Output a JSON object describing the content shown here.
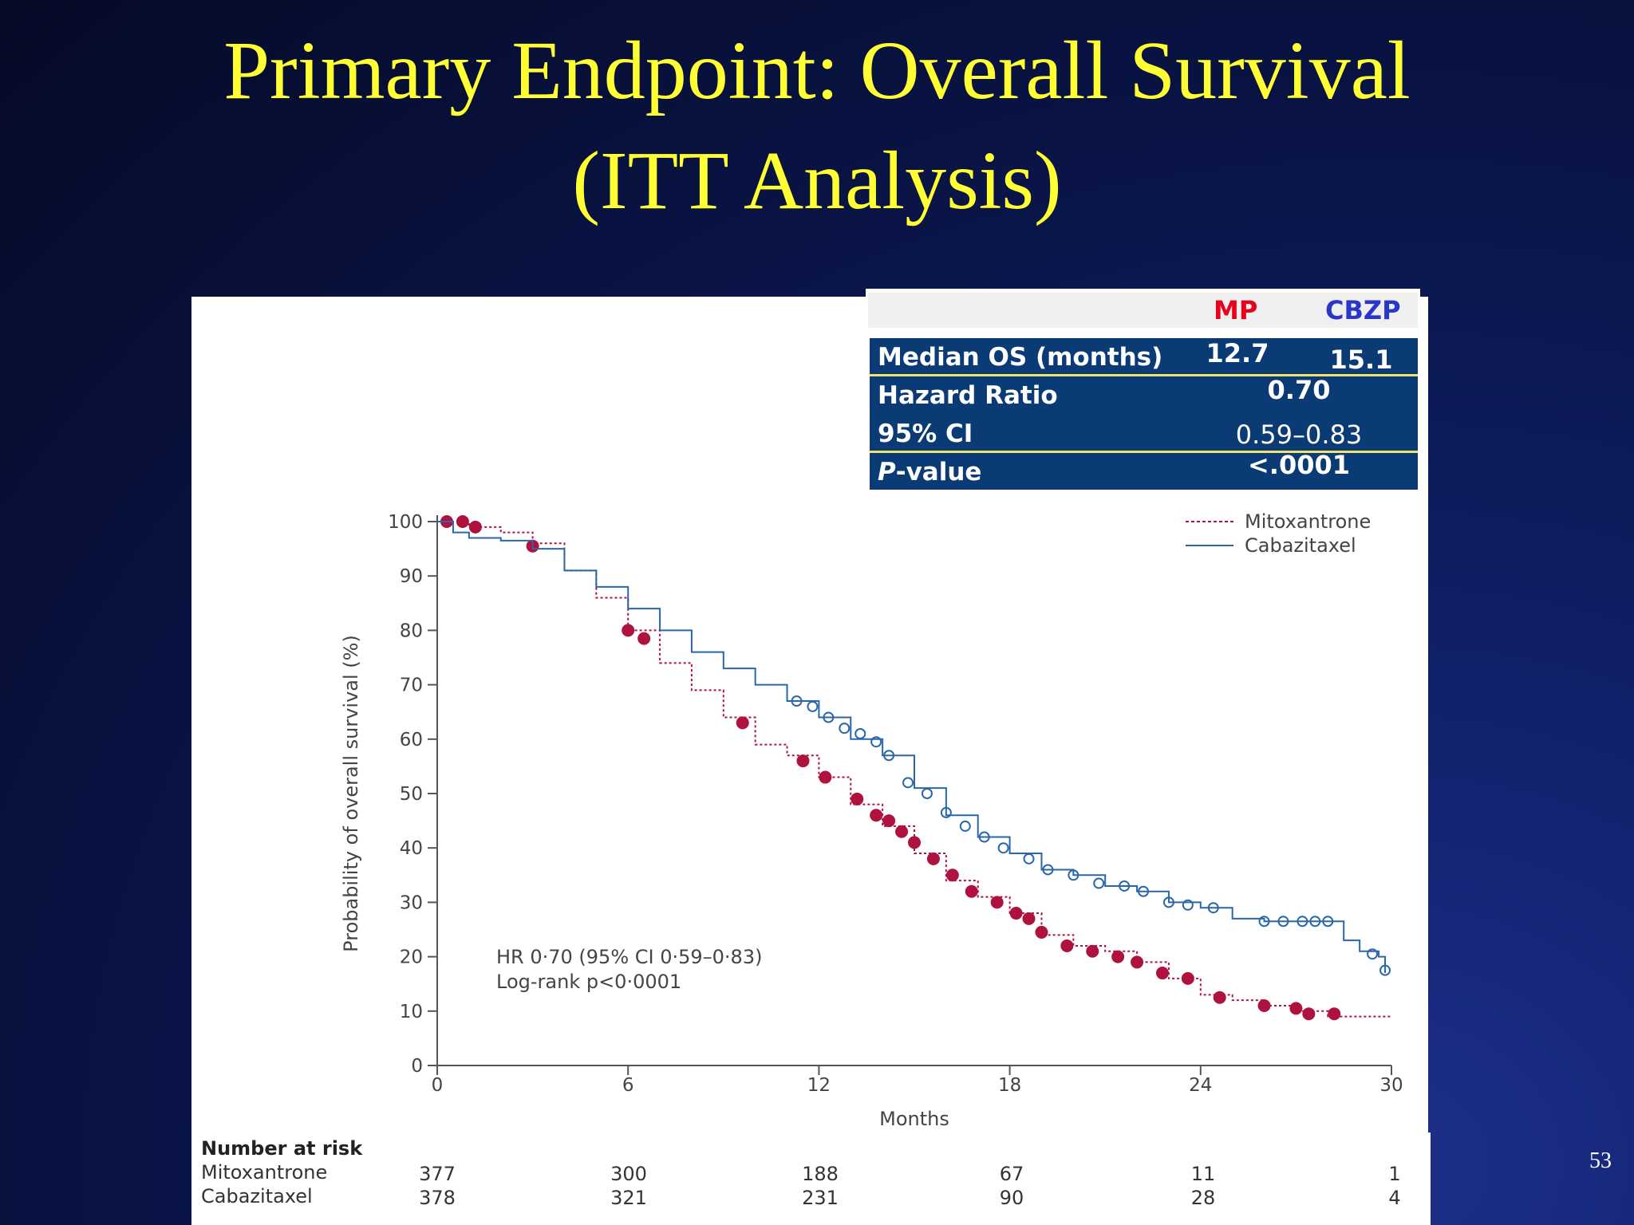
{
  "slide": {
    "title_line1": "Primary Endpoint: Overall Survival",
    "title_line2": "(ITT Analysis)",
    "page_number": "53"
  },
  "summary_table": {
    "columns": [
      "MP",
      "CBZP"
    ],
    "column_colors": [
      "#e8001c",
      "#2a36c8"
    ],
    "rows": [
      {
        "label": "Median OS (months)",
        "mp": "12.7",
        "cbzp": "15.1"
      },
      {
        "label": "Hazard Ratio",
        "value": "0.70"
      },
      {
        "label": "95% CI",
        "value": "0.59–0.83"
      },
      {
        "label_prefix": "P",
        "label_suffix": "-value",
        "value": "<.0001"
      }
    ]
  },
  "risk_table": {
    "heading": "Number at risk",
    "rows": [
      {
        "label": "Mitoxantrone",
        "values": [
          "377",
          "300",
          "188",
          "67",
          "11",
          "1"
        ]
      },
      {
        "label": "Cabazitaxel",
        "values": [
          "378",
          "321",
          "231",
          "90",
          "28",
          "4"
        ]
      }
    ]
  },
  "chart_data": {
    "type": "line",
    "subtype": "kaplan-meier step curve with censor marks",
    "xlabel": "Months",
    "ylabel": "Probability of overall survival (%)",
    "xlim": [
      0,
      30
    ],
    "ylim": [
      0,
      100
    ],
    "x_ticks": [
      0,
      6,
      12,
      18,
      24,
      30
    ],
    "y_ticks": [
      0,
      10,
      20,
      30,
      40,
      50,
      60,
      70,
      80,
      90,
      100
    ],
    "grid": false,
    "legend_position": "top-right",
    "annotation": [
      "HR 0·70 (95% CI 0·59–0·83)",
      "Log-rank p<0·0001"
    ],
    "series": [
      {
        "name": "Mitoxantrone",
        "color": "#b0123f",
        "style": "dotted",
        "points": [
          [
            0,
            100
          ],
          [
            1,
            99
          ],
          [
            2,
            98
          ],
          [
            3,
            96
          ],
          [
            4,
            91
          ],
          [
            5,
            86
          ],
          [
            6,
            80
          ],
          [
            7,
            74
          ],
          [
            8,
            69
          ],
          [
            9,
            64
          ],
          [
            10,
            59
          ],
          [
            11,
            57
          ],
          [
            12,
            53
          ],
          [
            13,
            48
          ],
          [
            14,
            44
          ],
          [
            15,
            39
          ],
          [
            16,
            34
          ],
          [
            17,
            31
          ],
          [
            18,
            28
          ],
          [
            19,
            24
          ],
          [
            20,
            22
          ],
          [
            21,
            21
          ],
          [
            22,
            19
          ],
          [
            23,
            16
          ],
          [
            24,
            13
          ],
          [
            25,
            12
          ],
          [
            26,
            11
          ],
          [
            27,
            10
          ],
          [
            28,
            9
          ],
          [
            29,
            9
          ],
          [
            30,
            9
          ]
        ],
        "censored": [
          [
            0.3,
            100
          ],
          [
            0.8,
            100
          ],
          [
            1.2,
            99
          ],
          [
            3,
            95.5
          ],
          [
            6,
            80
          ],
          [
            6.5,
            78.5
          ],
          [
            9.6,
            63
          ],
          [
            11.5,
            56
          ],
          [
            12.2,
            53
          ],
          [
            13.2,
            49
          ],
          [
            13.8,
            46
          ],
          [
            14.2,
            45
          ],
          [
            14.6,
            43
          ],
          [
            15,
            41
          ],
          [
            15.6,
            38
          ],
          [
            16.2,
            35
          ],
          [
            16.8,
            32
          ],
          [
            17.6,
            30
          ],
          [
            18.2,
            28
          ],
          [
            18.6,
            27
          ],
          [
            19,
            24.5
          ],
          [
            19.8,
            22
          ],
          [
            20.6,
            21
          ],
          [
            21.4,
            20
          ],
          [
            22,
            19
          ],
          [
            22.8,
            17
          ],
          [
            23.6,
            16
          ],
          [
            24.6,
            12.5
          ],
          [
            26,
            11
          ],
          [
            27,
            10.5
          ],
          [
            27.4,
            9.5
          ],
          [
            28.2,
            9.5
          ]
        ]
      },
      {
        "name": "Cabazitaxel",
        "color": "#2a67a8",
        "style": "solid",
        "points": [
          [
            0,
            100
          ],
          [
            0.5,
            98
          ],
          [
            1,
            97
          ],
          [
            2,
            96.5
          ],
          [
            3,
            95
          ],
          [
            4,
            91
          ],
          [
            5,
            88
          ],
          [
            6,
            84
          ],
          [
            7,
            80
          ],
          [
            8,
            76
          ],
          [
            9,
            73
          ],
          [
            10,
            70
          ],
          [
            11,
            67
          ],
          [
            12,
            64
          ],
          [
            13,
            60
          ],
          [
            14,
            57
          ],
          [
            15,
            51
          ],
          [
            16,
            46
          ],
          [
            17,
            42
          ],
          [
            18,
            39
          ],
          [
            19,
            36
          ],
          [
            20,
            35
          ],
          [
            21,
            33
          ],
          [
            22,
            32
          ],
          [
            23,
            30
          ],
          [
            24,
            29
          ],
          [
            25,
            27
          ],
          [
            26,
            26.5
          ],
          [
            27,
            26.5
          ],
          [
            28,
            26.5
          ],
          [
            28.5,
            23
          ],
          [
            29,
            21
          ],
          [
            29.6,
            20
          ],
          [
            29.8,
            17
          ]
        ],
        "censored": [
          [
            11.3,
            67
          ],
          [
            11.8,
            66
          ],
          [
            12.3,
            64
          ],
          [
            12.8,
            62
          ],
          [
            13.3,
            61
          ],
          [
            13.8,
            59.5
          ],
          [
            14.2,
            57
          ],
          [
            14.8,
            52
          ],
          [
            15.4,
            50
          ],
          [
            16,
            46.5
          ],
          [
            16.6,
            44
          ],
          [
            17.2,
            42
          ],
          [
            17.8,
            40
          ],
          [
            18.6,
            38
          ],
          [
            19.2,
            36
          ],
          [
            20,
            35
          ],
          [
            20.8,
            33.5
          ],
          [
            21.6,
            33
          ],
          [
            22.2,
            32
          ],
          [
            23,
            30
          ],
          [
            23.6,
            29.5
          ],
          [
            24.4,
            29
          ],
          [
            26,
            26.5
          ],
          [
            26.6,
            26.5
          ],
          [
            27.2,
            26.5
          ],
          [
            27.6,
            26.5
          ],
          [
            28,
            26.5
          ],
          [
            29.4,
            20.5
          ],
          [
            29.8,
            17.5
          ]
        ]
      }
    ]
  }
}
